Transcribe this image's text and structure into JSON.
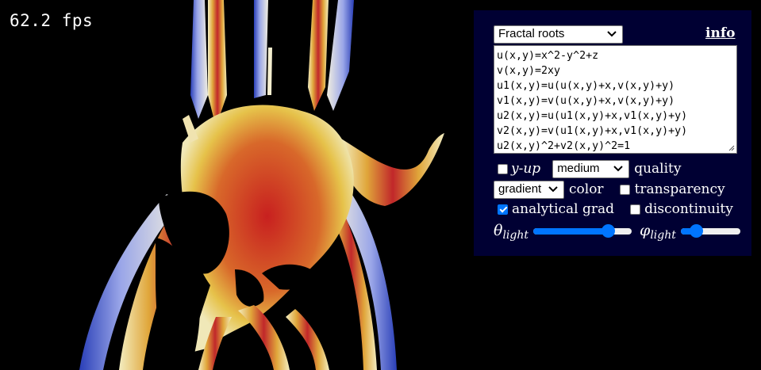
{
  "fps": {
    "text": "62.2 fps"
  },
  "panel": {
    "preset": {
      "selected": "Fractal roots"
    },
    "info_link": "info",
    "equations": [
      "u(x,y)=x^2-y^2+z",
      "v(x,y)=2xy",
      "u1(x,y)=u(u(x,y)+x,v(x,y)+y)",
      "v1(x,y)=v(u(x,y)+x,v(x,y)+y)",
      "u2(x,y)=u(u1(x,y)+x,v1(x,y)+y)",
      "v2(x,y)=v(u1(x,y)+x,v1(x,y)+y)",
      "u2(x,y)^2+v2(x,y)^2=1"
    ],
    "y_up": {
      "label": "y-up",
      "checked": false
    },
    "quality": {
      "selected": "medium",
      "label": "quality"
    },
    "color": {
      "selected": "gradient",
      "label": "color"
    },
    "transparency": {
      "label": "transparency",
      "checked": false
    },
    "analytical_grad": {
      "label": "analytical grad",
      "checked": true
    },
    "discontinuity": {
      "label": "discontinuity",
      "checked": false
    },
    "theta_light": {
      "symbol": "θ",
      "subscript": "light",
      "value": 0.8
    },
    "phi_light": {
      "symbol": "φ",
      "subscript": "light",
      "value": 0.2
    },
    "accent_color": "#0075ff",
    "panel_color": "#000033"
  }
}
